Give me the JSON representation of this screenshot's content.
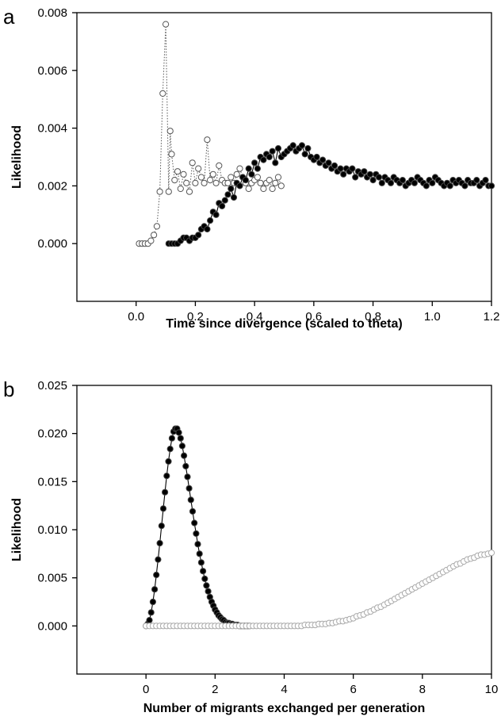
{
  "chart_data": [
    {
      "panel": "a",
      "type": "scatter",
      "xlabel": "Time since divergence (scaled to theta)",
      "ylabel": "Likelihood",
      "xlim": [
        -0.2,
        1.2
      ],
      "ylim": [
        -0.002,
        0.008
      ],
      "xticks": [
        0.0,
        0.2,
        0.4,
        0.6,
        0.8,
        1.0,
        1.2
      ],
      "xtick_labels": [
        "0.0",
        "0.2",
        "0.4",
        "0.6",
        "0.8",
        "1.0",
        "1.2"
      ],
      "yticks": [
        0.0,
        0.002,
        0.004,
        0.006,
        0.008
      ],
      "ytick_labels": [
        "0.000",
        "0.002",
        "0.004",
        "0.006",
        "0.008"
      ],
      "grid": false,
      "series": [
        {
          "marker": "open-circle",
          "line": "dotted",
          "color": "#555555",
          "x": [
            0.01,
            0.02,
            0.03,
            0.04,
            0.05,
            0.06,
            0.07,
            0.08,
            0.09,
            0.1,
            0.11,
            0.115,
            0.12,
            0.13,
            0.14,
            0.15,
            0.16,
            0.17,
            0.18,
            0.19,
            0.2,
            0.21,
            0.22,
            0.23,
            0.24,
            0.25,
            0.26,
            0.27,
            0.28,
            0.29,
            0.3,
            0.31,
            0.32,
            0.33,
            0.34,
            0.35,
            0.36,
            0.37,
            0.38,
            0.39,
            0.4,
            0.41,
            0.42,
            0.43,
            0.44,
            0.45,
            0.46,
            0.47,
            0.48,
            0.49
          ],
          "y": [
            0.0,
            0.0,
            0.0,
            0.0,
            0.0001,
            0.0003,
            0.0006,
            0.0018,
            0.0052,
            0.0076,
            0.0018,
            0.0039,
            0.0031,
            0.0022,
            0.0025,
            0.0019,
            0.0024,
            0.0021,
            0.0018,
            0.0028,
            0.0021,
            0.0026,
            0.0023,
            0.0021,
            0.0036,
            0.0022,
            0.0024,
            0.0021,
            0.0027,
            0.0022,
            0.0021,
            0.0021,
            0.0023,
            0.0021,
            0.0024,
            0.0026,
            0.0023,
            0.0021,
            0.0019,
            0.0021,
            0.0022,
            0.0023,
            0.0021,
            0.0019,
            0.0021,
            0.0022,
            0.0019,
            0.0021,
            0.0023,
            0.002
          ]
        },
        {
          "marker": "filled-circle",
          "line": "solid",
          "color": "#000000",
          "x": [
            0.11,
            0.12,
            0.13,
            0.14,
            0.15,
            0.16,
            0.17,
            0.18,
            0.19,
            0.2,
            0.21,
            0.22,
            0.23,
            0.24,
            0.25,
            0.26,
            0.27,
            0.28,
            0.29,
            0.3,
            0.31,
            0.32,
            0.33,
            0.34,
            0.35,
            0.36,
            0.37,
            0.38,
            0.39,
            0.4,
            0.41,
            0.42,
            0.43,
            0.44,
            0.45,
            0.46,
            0.47,
            0.48,
            0.49,
            0.5,
            0.51,
            0.52,
            0.53,
            0.54,
            0.55,
            0.56,
            0.57,
            0.58,
            0.59,
            0.6,
            0.61,
            0.62,
            0.63,
            0.64,
            0.65,
            0.66,
            0.67,
            0.68,
            0.69,
            0.7,
            0.71,
            0.72,
            0.73,
            0.74,
            0.75,
            0.76,
            0.77,
            0.78,
            0.79,
            0.8,
            0.81,
            0.82,
            0.83,
            0.84,
            0.85,
            0.86,
            0.87,
            0.88,
            0.89,
            0.9,
            0.91,
            0.92,
            0.93,
            0.94,
            0.95,
            0.96,
            0.97,
            0.98,
            0.99,
            1.0,
            1.01,
            1.02,
            1.03,
            1.04,
            1.05,
            1.06,
            1.07,
            1.08,
            1.09,
            1.1,
            1.11,
            1.12,
            1.13,
            1.14,
            1.15,
            1.16,
            1.17,
            1.18,
            1.19,
            1.2
          ],
          "y": [
            0.0,
            0.0,
            0.0,
            0.0,
            0.0001,
            0.0002,
            0.0002,
            0.0001,
            0.0002,
            0.0002,
            0.0003,
            0.0005,
            0.0006,
            0.0005,
            0.0008,
            0.0011,
            0.001,
            0.0014,
            0.0013,
            0.0015,
            0.0017,
            0.0019,
            0.0016,
            0.0021,
            0.002,
            0.0023,
            0.0022,
            0.0026,
            0.0024,
            0.0028,
            0.0026,
            0.003,
            0.0029,
            0.0031,
            0.003,
            0.0032,
            0.0028,
            0.0033,
            0.003,
            0.0031,
            0.0032,
            0.0033,
            0.0034,
            0.0032,
            0.0033,
            0.0034,
            0.0031,
            0.0033,
            0.003,
            0.0029,
            0.003,
            0.0028,
            0.0029,
            0.0027,
            0.0028,
            0.0026,
            0.0027,
            0.0025,
            0.0026,
            0.0024,
            0.0026,
            0.0025,
            0.0026,
            0.0023,
            0.0025,
            0.0024,
            0.0025,
            0.0023,
            0.0024,
            0.0022,
            0.0024,
            0.0023,
            0.0021,
            0.0023,
            0.0022,
            0.0021,
            0.0023,
            0.0022,
            0.0021,
            0.0022,
            0.002,
            0.0021,
            0.0022,
            0.0021,
            0.0023,
            0.0022,
            0.0021,
            0.002,
            0.0022,
            0.0021,
            0.0023,
            0.0022,
            0.0021,
            0.002,
            0.0021,
            0.002,
            0.0022,
            0.0021,
            0.0022,
            0.0021,
            0.002,
            0.0022,
            0.0021,
            0.0021,
            0.0022,
            0.002,
            0.0021,
            0.0022,
            0.002,
            0.002
          ]
        }
      ]
    },
    {
      "panel": "b",
      "type": "scatter",
      "xlabel": "Number of migrants exchanged per generation",
      "ylabel": "Likelihood",
      "xlim": [
        -2,
        10
      ],
      "ylim": [
        -0.005,
        0.025
      ],
      "xticks": [
        0,
        2,
        4,
        6,
        8,
        10
      ],
      "xtick_labels": [
        "0",
        "2",
        "4",
        "6",
        "8",
        "10"
      ],
      "yticks": [
        0.0,
        0.005,
        0.01,
        0.015,
        0.02,
        0.025
      ],
      "ytick_labels": [
        "0.000",
        "0.005",
        "0.010",
        "0.015",
        "0.020",
        "0.025"
      ],
      "grid": false,
      "series": [
        {
          "marker": "filled-circle",
          "line": "solid",
          "color": "#000000",
          "x": [
            0.0,
            0.05,
            0.1,
            0.15,
            0.2,
            0.25,
            0.3,
            0.35,
            0.4,
            0.45,
            0.5,
            0.55,
            0.6,
            0.65,
            0.7,
            0.75,
            0.8,
            0.85,
            0.9,
            0.95,
            1.0,
            1.05,
            1.1,
            1.15,
            1.2,
            1.25,
            1.3,
            1.35,
            1.4,
            1.45,
            1.5,
            1.55,
            1.6,
            1.65,
            1.7,
            1.75,
            1.8,
            1.85,
            1.9,
            1.95,
            2.0,
            2.05,
            2.1,
            2.15,
            2.2,
            2.25,
            2.3,
            2.35,
            2.4,
            2.45,
            2.5,
            2.55,
            2.6,
            2.65,
            2.7,
            2.75,
            2.8,
            2.85,
            2.9,
            2.95,
            3.0
          ],
          "y": [
            0.0,
            0.0002,
            0.0006,
            0.0014,
            0.0025,
            0.0038,
            0.0053,
            0.0069,
            0.0086,
            0.0104,
            0.0122,
            0.0139,
            0.0156,
            0.0171,
            0.0184,
            0.0195,
            0.0202,
            0.0205,
            0.0205,
            0.0201,
            0.0195,
            0.0187,
            0.0177,
            0.0166,
            0.0155,
            0.0143,
            0.0131,
            0.0119,
            0.0107,
            0.0096,
            0.0085,
            0.0075,
            0.0066,
            0.0057,
            0.0049,
            0.0042,
            0.0036,
            0.003,
            0.0025,
            0.0021,
            0.0017,
            0.0014,
            0.0011,
            0.0009,
            0.0007,
            0.0006,
            0.0004,
            0.0003,
            0.0003,
            0.0002,
            0.0002,
            0.0001,
            0.0001,
            0.0001,
            0.0,
            0.0,
            0.0,
            0.0,
            0.0,
            0.0,
            0.0
          ]
        },
        {
          "marker": "open-circle",
          "line": "none",
          "color": "#aaaaaa",
          "x": [
            0.0,
            0.1,
            0.2,
            0.3,
            0.4,
            0.5,
            0.6,
            0.7,
            0.8,
            0.9,
            1.0,
            1.1,
            1.2,
            1.3,
            1.4,
            1.5,
            1.6,
            1.7,
            1.8,
            1.9,
            2.0,
            2.1,
            2.2,
            2.3,
            2.4,
            2.5,
            2.6,
            2.7,
            2.8,
            2.9,
            3.0,
            3.1,
            3.2,
            3.3,
            3.4,
            3.5,
            3.6,
            3.7,
            3.8,
            3.9,
            4.0,
            4.1,
            4.2,
            4.3,
            4.4,
            4.5,
            4.6,
            4.7,
            4.8,
            4.9,
            5.0,
            5.1,
            5.2,
            5.3,
            5.4,
            5.5,
            5.6,
            5.7,
            5.8,
            5.9,
            6.0,
            6.1,
            6.2,
            6.3,
            6.4,
            6.5,
            6.6,
            6.7,
            6.8,
            6.9,
            7.0,
            7.1,
            7.2,
            7.3,
            7.4,
            7.5,
            7.6,
            7.7,
            7.8,
            7.9,
            8.0,
            8.1,
            8.2,
            8.3,
            8.4,
            8.5,
            8.6,
            8.7,
            8.8,
            8.9,
            9.0,
            9.1,
            9.2,
            9.3,
            9.4,
            9.5,
            9.6,
            9.7,
            9.8,
            9.9,
            10.0
          ],
          "y": [
            0.0,
            0.0,
            0.0,
            0.0,
            0.0,
            0.0,
            0.0,
            0.0,
            0.0,
            0.0,
            0.0,
            0.0,
            0.0,
            0.0,
            0.0,
            0.0,
            0.0,
            0.0,
            0.0,
            0.0,
            0.0,
            0.0,
            0.0,
            0.0,
            0.0,
            0.0,
            0.0,
            0.0,
            0.0,
            0.0,
            0.0,
            0.0,
            0.0,
            0.0,
            0.0,
            0.0,
            0.0,
            0.0,
            0.0,
            0.0,
            0.0,
            0.0,
            0.0,
            0.0,
            0.0,
            0.0,
            0.0001,
            0.0001,
            0.0001,
            0.0001,
            0.0002,
            0.0002,
            0.0002,
            0.0003,
            0.0003,
            0.0004,
            0.0005,
            0.0005,
            0.0006,
            0.0007,
            0.0008,
            0.001,
            0.0011,
            0.0012,
            0.0014,
            0.0015,
            0.0017,
            0.0019,
            0.002,
            0.0022,
            0.0024,
            0.0026,
            0.0028,
            0.003,
            0.0032,
            0.0034,
            0.0036,
            0.0038,
            0.004,
            0.0042,
            0.0044,
            0.0046,
            0.0048,
            0.005,
            0.0052,
            0.0054,
            0.0056,
            0.0058,
            0.006,
            0.0062,
            0.0064,
            0.0065,
            0.0067,
            0.0069,
            0.007,
            0.0071,
            0.0073,
            0.0074,
            0.0074,
            0.0075,
            0.0076
          ]
        }
      ]
    }
  ],
  "figure": {
    "panel_a_letter": "a",
    "panel_b_letter": "b"
  }
}
